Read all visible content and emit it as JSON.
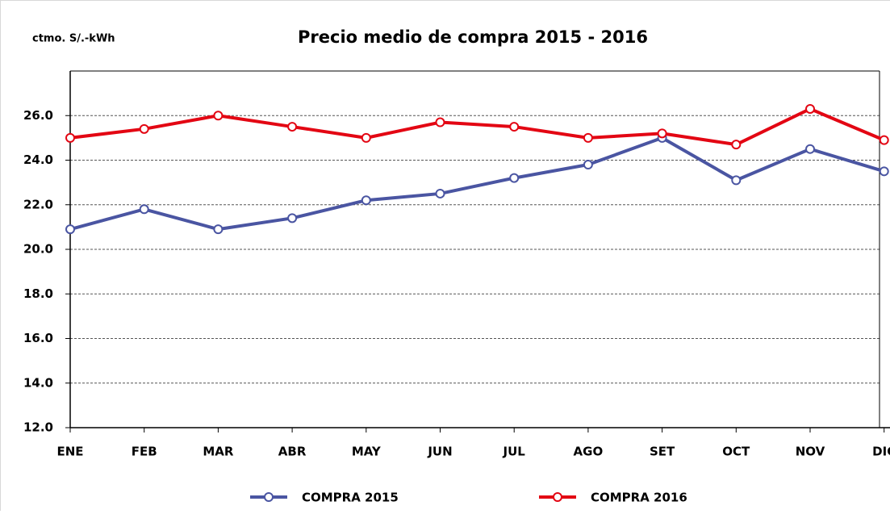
{
  "chart_data": {
    "type": "line",
    "title": "Precio medio de compra 2015 - 2016",
    "y_label": "ctmo. S/.-kWh",
    "categories": [
      "ENE",
      "FEB",
      "MAR",
      "ABR",
      "MAY",
      "JUN",
      "JUL",
      "AGO",
      "SET",
      "OCT",
      "NOV",
      "DIC"
    ],
    "series": [
      {
        "name": "COMPRA 2015",
        "color": "#4a55a2",
        "values": [
          20.9,
          21.8,
          20.9,
          21.4,
          22.2,
          22.5,
          23.2,
          23.8,
          25.0,
          23.1,
          24.5,
          23.5
        ]
      },
      {
        "name": "COMPRA 2016",
        "color": "#e30613",
        "values": [
          25.0,
          25.4,
          26.0,
          25.5,
          25.0,
          25.7,
          25.5,
          25.0,
          25.2,
          24.7,
          26.3,
          24.9
        ]
      }
    ],
    "ylim": [
      12,
      28
    ],
    "yticks": [
      {
        "value": 12,
        "label": "12.0"
      },
      {
        "value": 14,
        "label": "14.0"
      },
      {
        "value": 16,
        "label": "16.0"
      },
      {
        "value": 18,
        "label": "18.0"
      },
      {
        "value": 20,
        "label": "20.0"
      },
      {
        "value": 22,
        "label": "22.0"
      },
      {
        "value": 24,
        "label": "24.0"
      },
      {
        "value": 26,
        "label": "26.0"
      }
    ],
    "grid": true,
    "legend": "bottom"
  }
}
